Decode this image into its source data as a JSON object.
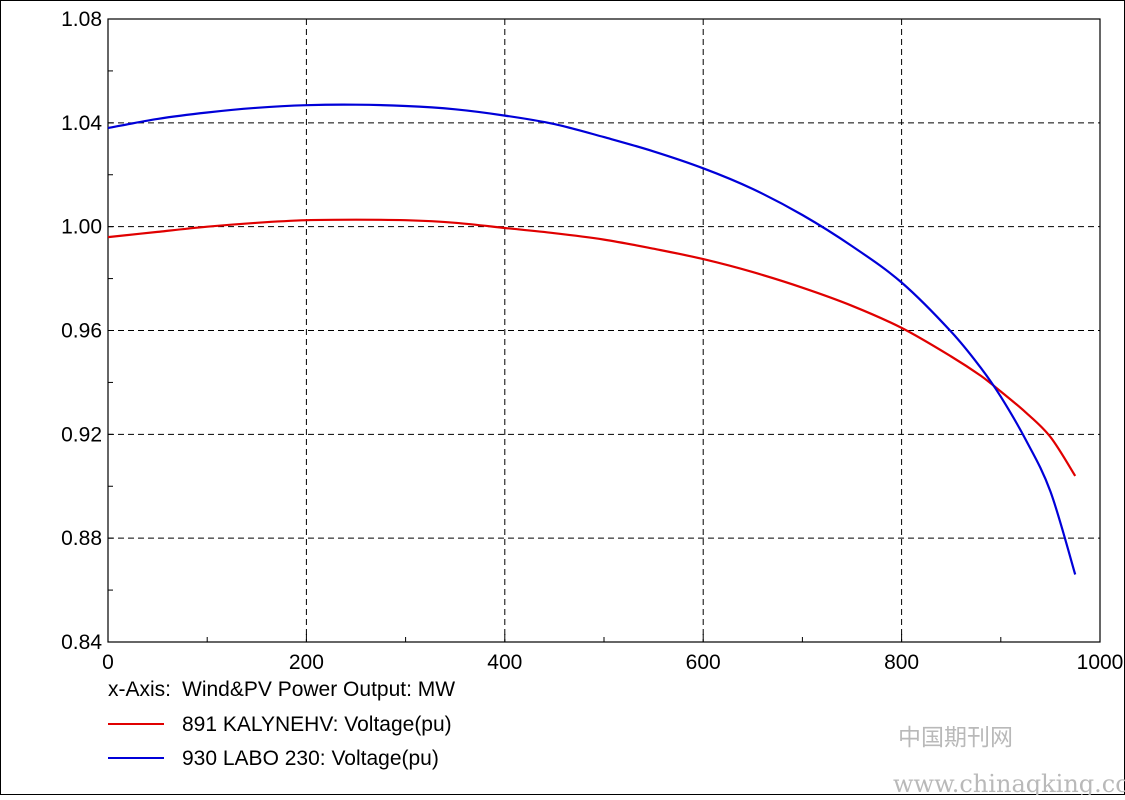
{
  "chart_data": {
    "type": "line",
    "xlabel_prefix": "x-Axis:",
    "xlabel": "Wind&PV Power Output: MW",
    "xlim": [
      0,
      1000
    ],
    "ylim": [
      0.84,
      1.08
    ],
    "x_ticks": [
      "0",
      "200",
      "400",
      "600",
      "800",
      "1000"
    ],
    "y_ticks": [
      "0.84",
      "0.88",
      "0.92",
      "0.96",
      "1.00",
      "1.04",
      "1.08"
    ],
    "grid": true,
    "legend_position": "bottom-left",
    "series": [
      {
        "name": "891 KALYNEHV: Voltage(pu)",
        "color": "#e00000",
        "x": [
          0,
          50,
          100,
          150,
          200,
          250,
          300,
          350,
          400,
          450,
          500,
          550,
          600,
          650,
          700,
          750,
          800,
          850,
          880,
          900,
          925,
          950,
          975
        ],
        "y": [
          0.996,
          0.998,
          1.0,
          1.0015,
          1.0025,
          1.0027,
          1.0025,
          1.0015,
          0.9995,
          0.9975,
          0.995,
          0.9915,
          0.9875,
          0.9825,
          0.9765,
          0.9695,
          0.961,
          0.95,
          0.9425,
          0.9365,
          0.9285,
          0.919,
          0.904
        ]
      },
      {
        "name": "930 LABO 230: Voltage(pu)",
        "color": "#0000d8",
        "x": [
          0,
          50,
          100,
          150,
          200,
          250,
          300,
          350,
          400,
          450,
          500,
          550,
          600,
          650,
          700,
          750,
          800,
          850,
          880,
          900,
          925,
          950,
          975
        ],
        "y": [
          1.038,
          1.0415,
          1.044,
          1.0458,
          1.0468,
          1.047,
          1.0465,
          1.0452,
          1.0428,
          1.0395,
          1.0345,
          1.029,
          1.0225,
          1.0145,
          1.0045,
          0.9925,
          0.9785,
          0.9595,
          0.9455,
          0.9345,
          0.918,
          0.898,
          0.866
        ]
      }
    ]
  },
  "watermark": {
    "line1": "中国期刊网",
    "line2": "www.chinaqking.com"
  }
}
